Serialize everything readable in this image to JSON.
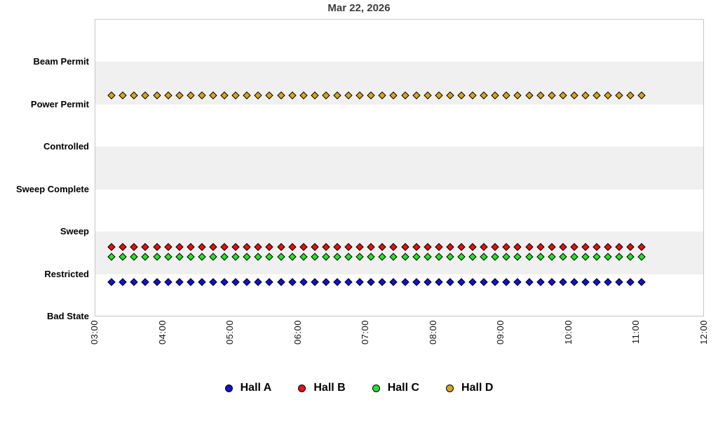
{
  "title": "Mar 22, 2026",
  "chart_data": {
    "type": "scatter",
    "title": "Mar 22, 2026",
    "x_axis": {
      "tick_labels": [
        "03:00",
        "04:00",
        "05:00",
        "06:00",
        "07:00",
        "08:00",
        "09:00",
        "10:00",
        "11:00",
        "12:00"
      ],
      "start_hour": 3,
      "end_hour": 12,
      "grid": false
    },
    "y_axis": {
      "categories_bottom_to_top": [
        "Bad State",
        "Restricted",
        "Sweep",
        "Sweep Complete",
        "Controlled",
        "Power Permit",
        "Beam Permit"
      ],
      "band_shading": "alternating"
    },
    "sample_times": [
      "03:15",
      "03:25",
      "03:35",
      "03:45",
      "03:55",
      "04:05",
      "04:15",
      "04:25",
      "04:35",
      "04:45",
      "04:55",
      "05:05",
      "05:15",
      "05:25",
      "05:35",
      "05:45",
      "05:55",
      "06:05",
      "06:15",
      "06:25",
      "06:35",
      "06:45",
      "06:55",
      "07:05",
      "07:15",
      "07:25",
      "07:35",
      "07:45",
      "07:55",
      "08:05",
      "08:15",
      "08:25",
      "08:35",
      "08:45",
      "08:55",
      "09:05",
      "09:15",
      "09:25",
      "09:35",
      "09:45",
      "09:55",
      "10:05",
      "10:15",
      "10:25",
      "10:35",
      "10:45",
      "10:55",
      "11:05"
    ],
    "series": [
      {
        "name": "Hall A",
        "marker_color": "#1212d0",
        "state": "Restricted",
        "y_units": 0.81
      },
      {
        "name": "Hall B",
        "marker_color": "#e81010",
        "state": "Sweep",
        "y_units": 1.636
      },
      {
        "name": "Hall C",
        "marker_color": "#2cdd2c",
        "state": "Sweep",
        "y_units": 1.4
      },
      {
        "name": "Hall D",
        "marker_color": "#d8a41e",
        "state": "Power Permit",
        "y_units": 5.207
      }
    ],
    "legend": {
      "position": "bottom",
      "entries": [
        "Hall A",
        "Hall B",
        "Hall C",
        "Hall D"
      ]
    },
    "colors": {
      "band_gray": "#f0f0f0",
      "plot_border": "#c6c6c6",
      "title_text": "#3d3d3d",
      "marker_outline": "#000000"
    }
  }
}
